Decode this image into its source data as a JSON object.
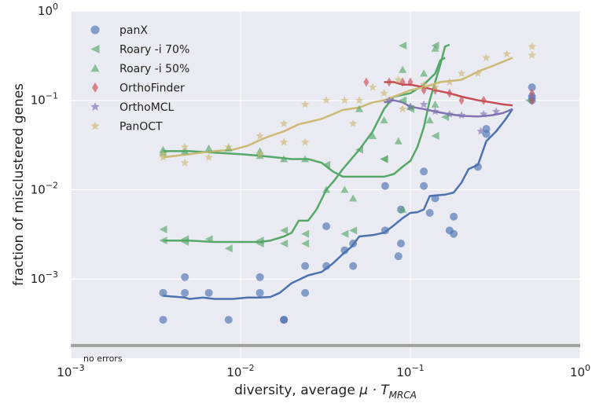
{
  "chart_data": {
    "type": "scatter",
    "xlabel_prefix": "diversity, average ",
    "xlabel_math": "μ · T",
    "xlabel_sub": "MRCA",
    "ylabel": "fraction of misclustered genes",
    "xscale": "log",
    "yscale": "log",
    "xlim": [
      0.001,
      1
    ],
    "ylim": [
      0.00013,
      1
    ],
    "grid": true,
    "legend_position": "top-left",
    "x_ticks": [
      {
        "value": 0.001,
        "base": "10",
        "exp": "−3"
      },
      {
        "value": 0.01,
        "base": "10",
        "exp": "−2"
      },
      {
        "value": 0.1,
        "base": "10",
        "exp": "−1"
      },
      {
        "value": 1,
        "base": "10",
        "exp": "0"
      }
    ],
    "y_ticks": [
      {
        "value": 0.001,
        "base": "10",
        "exp": "−3"
      },
      {
        "value": 0.01,
        "base": "10",
        "exp": "−2"
      },
      {
        "value": 0.1,
        "base": "10",
        "exp": "−1"
      },
      {
        "value": 1,
        "base": "10",
        "exp": "0"
      }
    ],
    "no_errors": {
      "label": "no errors",
      "y": 0.00018,
      "color": "#a0a0a0"
    },
    "series": [
      {
        "name": "panX",
        "marker": "circle",
        "color": "#4c72b0",
        "points": [
          [
            0.0035,
            0.00035
          ],
          [
            0.0035,
            0.0007
          ],
          [
            0.0047,
            0.0007
          ],
          [
            0.0047,
            0.00105
          ],
          [
            0.0065,
            0.0007
          ],
          [
            0.0085,
            0.00035
          ],
          [
            0.013,
            0.0007
          ],
          [
            0.013,
            0.00105
          ],
          [
            0.018,
            0.00035
          ],
          [
            0.018,
            0.00035
          ],
          [
            0.024,
            0.0007
          ],
          [
            0.024,
            0.0014
          ],
          [
            0.032,
            0.0014
          ],
          [
            0.032,
            0.0039
          ],
          [
            0.041,
            0.0021
          ],
          [
            0.046,
            0.0014
          ],
          [
            0.046,
            0.0025
          ],
          [
            0.071,
            0.011
          ],
          [
            0.071,
            0.0035
          ],
          [
            0.085,
            0.0018
          ],
          [
            0.088,
            0.0025
          ],
          [
            0.088,
            0.006
          ],
          [
            0.12,
            0.016
          ],
          [
            0.12,
            0.011
          ],
          [
            0.13,
            0.0055
          ],
          [
            0.14,
            0.008
          ],
          [
            0.17,
            0.0035
          ],
          [
            0.18,
            0.005
          ],
          [
            0.18,
            0.0032
          ],
          [
            0.25,
            0.018
          ],
          [
            0.28,
            0.048
          ],
          [
            0.28,
            0.042
          ],
          [
            0.52,
            0.14
          ],
          [
            0.52,
            0.1
          ],
          [
            0.52,
            0.11
          ]
        ],
        "trend": [
          [
            0.0035,
            0.00065
          ],
          [
            0.0047,
            0.00062
          ],
          [
            0.005,
            0.0006
          ],
          [
            0.006,
            0.00062
          ],
          [
            0.007,
            0.0006
          ],
          [
            0.009,
            0.0006
          ],
          [
            0.011,
            0.00062
          ],
          [
            0.013,
            0.00062
          ],
          [
            0.015,
            0.00063
          ],
          [
            0.017,
            0.0007
          ],
          [
            0.02,
            0.0009
          ],
          [
            0.025,
            0.0011
          ],
          [
            0.03,
            0.0012
          ],
          [
            0.035,
            0.0015
          ],
          [
            0.04,
            0.0019
          ],
          [
            0.045,
            0.0023
          ],
          [
            0.05,
            0.003
          ],
          [
            0.06,
            0.0031
          ],
          [
            0.07,
            0.0033
          ],
          [
            0.08,
            0.004
          ],
          [
            0.09,
            0.0048
          ],
          [
            0.1,
            0.0055
          ],
          [
            0.11,
            0.0056
          ],
          [
            0.12,
            0.006
          ],
          [
            0.13,
            0.0085
          ],
          [
            0.16,
            0.0088
          ],
          [
            0.18,
            0.0093
          ],
          [
            0.2,
            0.012
          ],
          [
            0.22,
            0.017
          ],
          [
            0.25,
            0.019
          ],
          [
            0.28,
            0.035
          ],
          [
            0.32,
            0.045
          ],
          [
            0.36,
            0.06
          ],
          [
            0.4,
            0.08
          ]
        ]
      },
      {
        "name": "Roary -i 70%",
        "marker": "triangle-left",
        "color": "#55a868",
        "points": [
          [
            0.0035,
            0.0036
          ],
          [
            0.0035,
            0.0027
          ],
          [
            0.0047,
            0.0026
          ],
          [
            0.0047,
            0.0028
          ],
          [
            0.0065,
            0.0028
          ],
          [
            0.0085,
            0.0022
          ],
          [
            0.013,
            0.0025
          ],
          [
            0.013,
            0.0027
          ],
          [
            0.018,
            0.0025
          ],
          [
            0.018,
            0.0035
          ],
          [
            0.024,
            0.0025
          ],
          [
            0.024,
            0.0032
          ],
          [
            0.032,
            0.019
          ],
          [
            0.041,
            0.0032
          ],
          [
            0.046,
            0.0035
          ],
          [
            0.05,
            0.028
          ],
          [
            0.07,
            0.022
          ],
          [
            0.07,
            0.022
          ],
          [
            0.09,
            0.41
          ],
          [
            0.09,
            0.1
          ],
          [
            0.1,
            0.08
          ],
          [
            0.14,
            0.04
          ],
          [
            0.14,
            0.41
          ],
          [
            0.16,
            0.065
          ],
          [
            0.5,
            0.1
          ]
        ],
        "trend": [
          [
            0.0035,
            0.027
          ],
          [
            0.005,
            0.027
          ],
          [
            0.007,
            0.026
          ],
          [
            0.01,
            0.025
          ],
          [
            0.013,
            0.024
          ],
          [
            0.016,
            0.023
          ],
          [
            0.02,
            0.022
          ],
          [
            0.025,
            0.022
          ],
          [
            0.03,
            0.02
          ],
          [
            0.035,
            0.016
          ],
          [
            0.04,
            0.014
          ],
          [
            0.05,
            0.014
          ],
          [
            0.06,
            0.014
          ],
          [
            0.07,
            0.014
          ],
          [
            0.08,
            0.015
          ],
          [
            0.09,
            0.018
          ],
          [
            0.1,
            0.021
          ],
          [
            0.11,
            0.03
          ],
          [
            0.12,
            0.05
          ],
          [
            0.13,
            0.1
          ],
          [
            0.15,
            0.25
          ],
          [
            0.16,
            0.4
          ],
          [
            0.17,
            0.42
          ]
        ]
      },
      {
        "name": "Roary -i 50%",
        "marker": "triangle-up",
        "color": "#55a868",
        "points": [
          [
            0.0035,
            0.028
          ],
          [
            0.0035,
            0.026
          ],
          [
            0.0047,
            0.027
          ],
          [
            0.0065,
            0.029
          ],
          [
            0.0085,
            0.029
          ],
          [
            0.013,
            0.027
          ],
          [
            0.013,
            0.024
          ],
          [
            0.018,
            0.022
          ],
          [
            0.024,
            0.022
          ],
          [
            0.032,
            0.01
          ],
          [
            0.041,
            0.01
          ],
          [
            0.046,
            0.008
          ],
          [
            0.05,
            0.08
          ],
          [
            0.06,
            0.04
          ],
          [
            0.07,
            0.06
          ],
          [
            0.085,
            0.035
          ],
          [
            0.09,
            0.006
          ],
          [
            0.09,
            0.22
          ],
          [
            0.1,
            0.085
          ],
          [
            0.12,
            0.2
          ],
          [
            0.13,
            0.06
          ],
          [
            0.14,
            0.09
          ],
          [
            0.14,
            0.38
          ]
        ],
        "trend": [
          [
            0.0035,
            0.0027
          ],
          [
            0.005,
            0.0027
          ],
          [
            0.007,
            0.0026
          ],
          [
            0.009,
            0.0026
          ],
          [
            0.011,
            0.0026
          ],
          [
            0.013,
            0.0026
          ],
          [
            0.015,
            0.0027
          ],
          [
            0.018,
            0.003
          ],
          [
            0.02,
            0.0033
          ],
          [
            0.022,
            0.0045
          ],
          [
            0.025,
            0.0045
          ],
          [
            0.028,
            0.006
          ],
          [
            0.032,
            0.01
          ],
          [
            0.036,
            0.013
          ],
          [
            0.04,
            0.017
          ],
          [
            0.05,
            0.028
          ],
          [
            0.06,
            0.045
          ],
          [
            0.07,
            0.08
          ],
          [
            0.08,
            0.11
          ],
          [
            0.1,
            0.12
          ],
          [
            0.12,
            0.15
          ],
          [
            0.14,
            0.2
          ],
          [
            0.15,
            0.28
          ],
          [
            0.16,
            0.3
          ]
        ]
      },
      {
        "name": "OrthoFinder",
        "marker": "diamond",
        "color": "#c44e52",
        "points": [
          [
            0.055,
            0.16
          ],
          [
            0.075,
            0.16
          ],
          [
            0.09,
            0.16
          ],
          [
            0.1,
            0.16
          ],
          [
            0.12,
            0.13
          ],
          [
            0.14,
            0.13
          ],
          [
            0.17,
            0.12
          ],
          [
            0.2,
            0.1
          ],
          [
            0.27,
            0.1
          ],
          [
            0.52,
            0.1
          ],
          [
            0.52,
            0.12
          ]
        ],
        "trend": [
          [
            0.07,
            0.16
          ],
          [
            0.08,
            0.16
          ],
          [
            0.09,
            0.15
          ],
          [
            0.1,
            0.15
          ],
          [
            0.12,
            0.14
          ],
          [
            0.14,
            0.13
          ],
          [
            0.17,
            0.12
          ],
          [
            0.2,
            0.11
          ],
          [
            0.25,
            0.1
          ],
          [
            0.3,
            0.095
          ],
          [
            0.35,
            0.09
          ],
          [
            0.4,
            0.088
          ]
        ]
      },
      {
        "name": "OrthoMCL",
        "marker": "star",
        "color": "#8172b2",
        "points": [
          [
            0.075,
            0.1
          ],
          [
            0.1,
            0.085
          ],
          [
            0.12,
            0.09
          ],
          [
            0.14,
            0.075
          ],
          [
            0.17,
            0.07
          ],
          [
            0.2,
            0.068
          ],
          [
            0.26,
            0.045
          ],
          [
            0.27,
            0.07
          ],
          [
            0.32,
            0.075
          ],
          [
            0.52,
            0.11
          ]
        ],
        "trend": [
          [
            0.07,
            0.095
          ],
          [
            0.08,
            0.1
          ],
          [
            0.09,
            0.095
          ],
          [
            0.1,
            0.085
          ],
          [
            0.12,
            0.08
          ],
          [
            0.14,
            0.075
          ],
          [
            0.17,
            0.07
          ],
          [
            0.2,
            0.067
          ],
          [
            0.25,
            0.066
          ],
          [
            0.3,
            0.068
          ],
          [
            0.35,
            0.072
          ],
          [
            0.4,
            0.08
          ]
        ]
      },
      {
        "name": "PanOCT",
        "marker": "star",
        "color": "#ccb974",
        "points": [
          [
            0.0035,
            0.025
          ],
          [
            0.0035,
            0.023
          ],
          [
            0.0047,
            0.02
          ],
          [
            0.0047,
            0.03
          ],
          [
            0.0065,
            0.023
          ],
          [
            0.0085,
            0.03
          ],
          [
            0.013,
            0.04
          ],
          [
            0.013,
            0.025
          ],
          [
            0.018,
            0.034
          ],
          [
            0.018,
            0.055
          ],
          [
            0.024,
            0.034
          ],
          [
            0.024,
            0.09
          ],
          [
            0.032,
            0.1
          ],
          [
            0.041,
            0.1
          ],
          [
            0.046,
            0.055
          ],
          [
            0.05,
            0.1
          ],
          [
            0.06,
            0.14
          ],
          [
            0.07,
            0.12
          ],
          [
            0.085,
            0.17
          ],
          [
            0.09,
            0.08
          ],
          [
            0.12,
            0.15
          ],
          [
            0.14,
            0.14
          ],
          [
            0.17,
            0.16
          ],
          [
            0.2,
            0.2
          ],
          [
            0.25,
            0.2
          ],
          [
            0.28,
            0.3
          ],
          [
            0.37,
            0.33
          ],
          [
            0.52,
            0.4
          ],
          [
            0.52,
            0.32
          ]
        ],
        "trend": [
          [
            0.0035,
            0.023
          ],
          [
            0.005,
            0.025
          ],
          [
            0.007,
            0.027
          ],
          [
            0.009,
            0.028
          ],
          [
            0.011,
            0.031
          ],
          [
            0.013,
            0.036
          ],
          [
            0.015,
            0.04
          ],
          [
            0.018,
            0.045
          ],
          [
            0.022,
            0.054
          ],
          [
            0.026,
            0.058
          ],
          [
            0.03,
            0.062
          ],
          [
            0.035,
            0.07
          ],
          [
            0.04,
            0.078
          ],
          [
            0.05,
            0.083
          ],
          [
            0.06,
            0.095
          ],
          [
            0.07,
            0.1
          ],
          [
            0.08,
            0.11
          ],
          [
            0.1,
            0.13
          ],
          [
            0.12,
            0.14
          ],
          [
            0.15,
            0.16
          ],
          [
            0.2,
            0.17
          ],
          [
            0.25,
            0.21
          ],
          [
            0.3,
            0.24
          ],
          [
            0.35,
            0.27
          ],
          [
            0.4,
            0.3
          ]
        ]
      }
    ]
  }
}
